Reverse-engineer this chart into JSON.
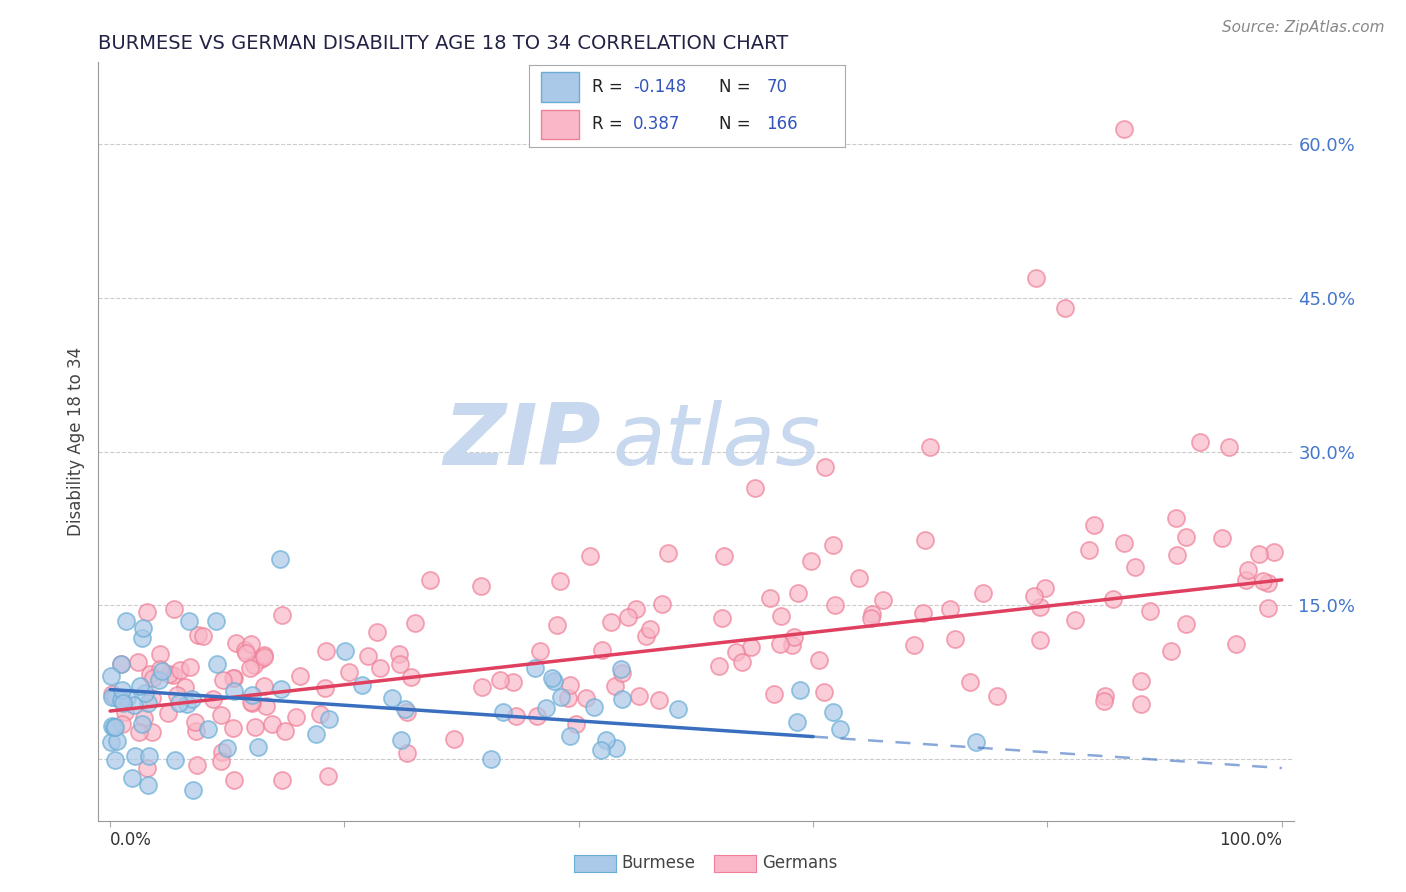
{
  "title": "BURMESE VS GERMAN DISABILITY AGE 18 TO 34 CORRELATION CHART",
  "source": "Source: ZipAtlas.com",
  "ylabel": "Disability Age 18 to 34",
  "burmese_color": "#6aaed6",
  "german_color": "#f08098",
  "burmese_fill": "#aac8e8",
  "german_fill": "#f8b8c8",
  "burmese_line_color": "#3a6fc0",
  "german_line_color": "#e04060",
  "legend_R_color": "#3355bb",
  "legend_N_color": "#3355bb",
  "watermark_ZIP": "#c8d8ee",
  "watermark_atlas": "#c8d8ee",
  "background_color": "#ffffff",
  "grid_color": "#cccccc",
  "burmese_N": 70,
  "german_N": 166,
  "figsize": [
    14.06,
    8.92
  ],
  "dpi": 100,
  "yticks": [
    0.0,
    0.15,
    0.3,
    0.45,
    0.6
  ],
  "ytick_labels": [
    "",
    "15.0%",
    "30.0%",
    "45.0%",
    "60.0%"
  ],
  "xlim": [
    -0.01,
    1.01
  ],
  "ylim": [
    -0.06,
    0.68
  ],
  "bur_line_x0": 0.0,
  "bur_line_y0": 0.068,
  "bur_line_x1": 0.6,
  "bur_line_y1": 0.022,
  "ger_line_x0": 0.0,
  "ger_line_y0": 0.047,
  "ger_line_x1": 1.0,
  "ger_line_y1": 0.175
}
